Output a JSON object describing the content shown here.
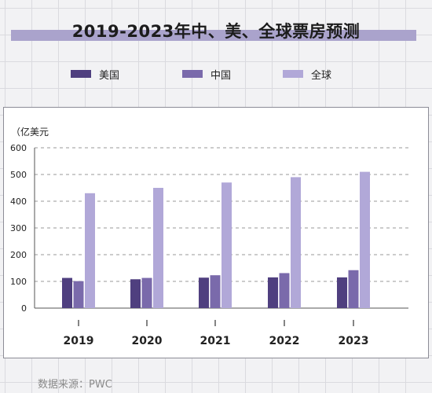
{
  "chart_data": {
    "type": "bar",
    "title": "2019-2023年中、美、全球票房预测",
    "ylabel": "（亿美元",
    "categories": [
      "2019",
      "2020",
      "2021",
      "2022",
      "2023"
    ],
    "series": [
      {
        "name": "美国",
        "color": "#4f3f7f",
        "values": [
          113,
          108,
          114,
          115,
          115
        ]
      },
      {
        "name": "中国",
        "color": "#7a6aab",
        "values": [
          101,
          113,
          123,
          131,
          142
        ]
      },
      {
        "name": "全球",
        "color": "#b1a8d8",
        "values": [
          430,
          450,
          470,
          490,
          510
        ]
      }
    ],
    "yticks": [
      0,
      100,
      200,
      300,
      400,
      500,
      600
    ],
    "ylim": [
      0,
      600
    ],
    "grid": true,
    "legend": "top"
  },
  "source": "数据来源：PWC"
}
